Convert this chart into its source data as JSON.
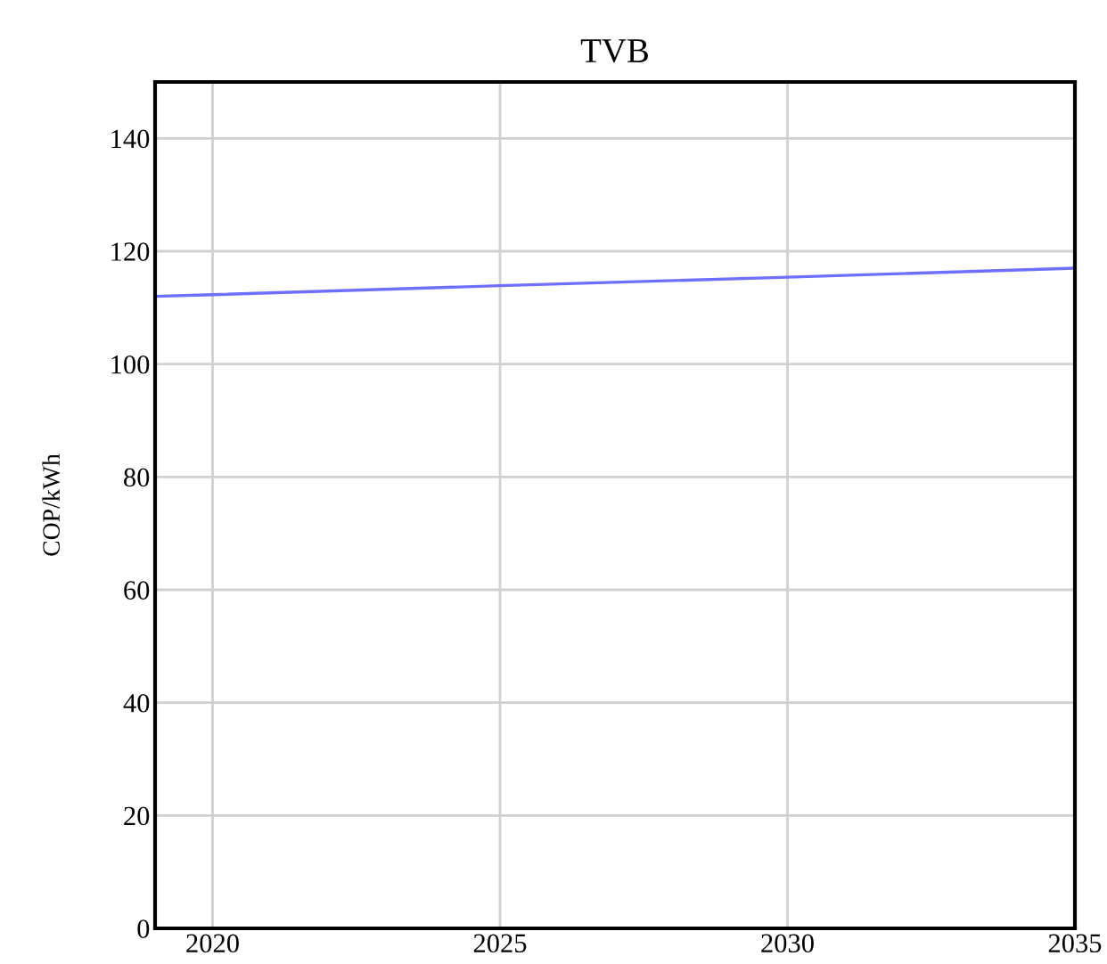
{
  "chart_data": {
    "type": "line",
    "title": "TVB",
    "ylabel": "COP/kWh",
    "x": [
      2019,
      2020,
      2025,
      2030,
      2035
    ],
    "series": [
      {
        "color": "#6f6fff",
        "values": [
          112,
          112.3,
          113.9,
          115.4,
          117
        ]
      }
    ],
    "xlim": [
      2019,
      2035
    ],
    "xticks": [
      2020,
      2025,
      2030,
      2035
    ],
    "ylim": [
      0,
      150
    ],
    "yticks": [
      0,
      20,
      40,
      60,
      80,
      100,
      120,
      140
    ],
    "grid": true,
    "legend": false,
    "marker": "none",
    "line_style": "solid"
  }
}
